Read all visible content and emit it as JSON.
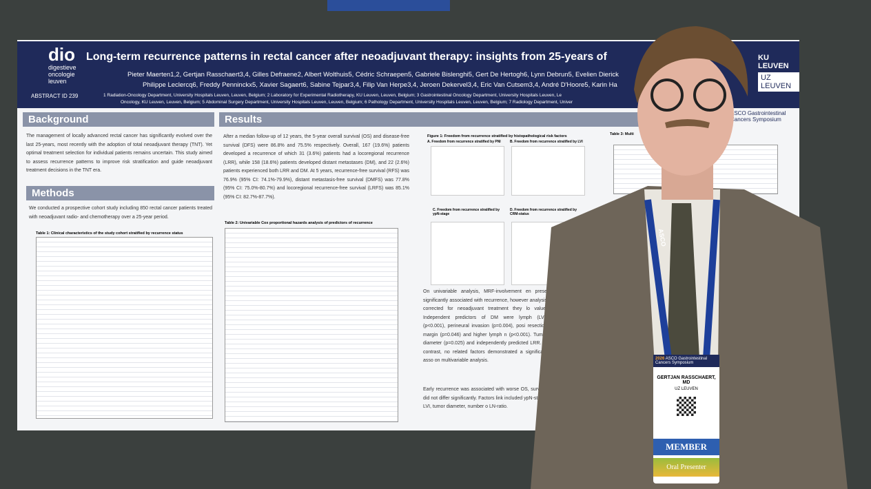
{
  "header": {
    "logo": "dio",
    "logo_sub": "digestieve oncologie leuven",
    "abstract": "ABSTRACT ID 239",
    "title": "Long-term recurrence patterns in rectal cancer after neoadjuvant therapy: insights from 25-years of",
    "authors_1": "Pieter Maerten1,2, Gertjan Rasschaert3,4, Gilles Defraene2, Albert Wolthuis5, Cédric Schraepen5, Gabriele Bislenghi5, Gert De Hertogh6, Lynn Debrun5, Evelien Dierick",
    "authors_2": "Philippe Leclercq6, Freddy Penninckx5, Xavier Sagaert6, Sabine Tejpar3,4, Filip Van Herpe3,4, Jeroen Dekervel3,4, Eric Van Cutsem3,4, André D'Hoore5, Karin Ha",
    "affil_1": "1 Radiation-Oncology Department, University Hospitals Leuven, Leuven, Belgium; 2 Laboratory for Experimental Radiotherapy, KU Leuven, Leuven, Belgium; 3 Gastrointestinal Oncology Department, University Hospitals Leuven, Le",
    "affil_2": "Oncology, KU Leuven, Leuven, Belgium; 5 Abdominal Surgery Department, University Hospitals Leuven, Leuven, Belgium; 6 Pathology Department, University Hospitals Leuven, Leuven, Belgium; 7 Radiology Department, Univer",
    "ku": "KU LEUVEN",
    "uz": "UZ LEUVEN"
  },
  "background": {
    "heading": "Background",
    "text": "The management of locally advanced rectal cancer has significantly evolved over the last 25-years, most recently with the adoption of total neoadjuvant therapy (TNT). Yet optimal treatment selection for individual patients remains uncertain. This study aimed to assess recurrence patterns to improve risk stratification and guide neoadjuvant treatment decisions in the TNT era."
  },
  "methods": {
    "heading": "Methods",
    "text": "We conducted a prospective cohort study including 850 rectal cancer patients treated with neoadjuvant radio- and chemotherapy over a 25-year period.",
    "table_title": "Table 1: Clinical characteristics of the study cohort stratified by recurrence status"
  },
  "results": {
    "heading": "Results",
    "text": "After a median follow-up of 12 years, the 5-year overall survival (OS) and disease-free survival (DFS) were 86.8% and 75.5% respectively. Overall, 167 (19.6%) patients developed a recurrence of which 31 (3.6%) patients had a locoregional recurrence (LRR), while 158 (18.6%) patients developed distant metastases (DM), and 22 (2.6%) patients experienced both LRR and DM. At 5 years, recurrence-free survival (RFS) was 76.9% (95% CI: 74.1%-79.9%), distant metastasis-free survival (DMFS) was 77.8% (95% CI: 75.0%-80.7%) and locoregional recurrence-free survival (LRFS) was 85.1% (95% CI: 82.7%-87.7%).",
    "table_title": "Table 2: Univariable Cox proportional hazards analysis of predictors of recurrence",
    "figure_title": "Figure 1: Freedom from recurrence stratified by histopathological risk factors",
    "panel_a": "A. Freedom from recurrence stratified by PNI",
    "panel_b": "B. Freedom from recurrence stratified by LVI",
    "panel_c": "C. Freedom from recurrence stratified by ypN-stage",
    "panel_d": "D. Freedom from recurrence stratified by CRM-status",
    "table3_title": "Table 3: Multi",
    "text_2": "On univariable analysis, MRF-involvement en prese significantly associated with recurrence, however analysis corrected for neoadjuvant treatment they lo value. Independent predictors of DM were lymph (LVI) (p<0.001), perineural invasion (p=0.004), posi resection margin (p=0.046) and higher lymph n (p<0.001). Tumor diameter (p=0.025) and independently predicted LRR. In contrast, no related factors demonstrated a significant asso on multivariable analysis.",
    "text_3": "Early recurrence was associated with worse OS, survival did not differ significantly. Factors link included ypN-stage, LVI, tumor diameter, number o LN-ratio."
  },
  "symposium": {
    "line_1": "ASCO Gastrointestinal",
    "line_2": "Cancers Symposium"
  },
  "badge": {
    "lanyard": "ASCO",
    "event": "ASCO Gastrointestinal Cancers Symposium",
    "year": "2026",
    "name": "GERTJAN RASSCHAERT, MD",
    "org": "UZ LEUVEN",
    "member": "MEMBER",
    "role": "Oral Presenter"
  }
}
